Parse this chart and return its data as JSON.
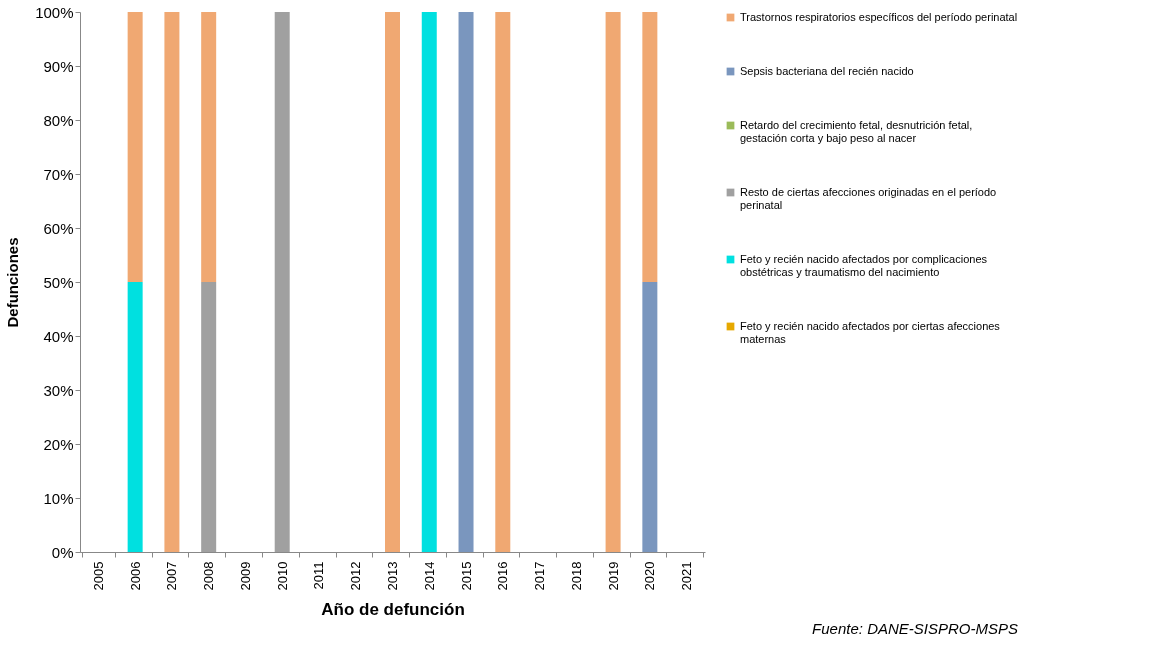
{
  "chart_data": {
    "type": "bar",
    "stacked": true,
    "xlabel": "Año de defunción",
    "ylabel": "Defunciones",
    "categories": [
      "2005",
      "2006",
      "2007",
      "2008",
      "2009",
      "2010",
      "2011",
      "2012",
      "2013",
      "2014",
      "2015",
      "2016",
      "2017",
      "2018",
      "2019",
      "2020",
      "2021"
    ],
    "series": [
      {
        "name": "Feto y recién nacido afectados por ciertas afecciones maternas",
        "color": "#e6a800",
        "values": [
          0,
          0,
          0,
          0,
          0,
          0,
          0,
          0,
          0,
          0,
          0,
          0,
          0,
          0,
          0,
          0,
          0
        ]
      },
      {
        "name": "Feto y recién nacido afectados por complicaciones obstétricas y traumatismo del nacimiento",
        "color": "#00e0e0",
        "values": [
          0,
          50,
          0,
          0,
          0,
          0,
          0,
          0,
          0,
          100,
          0,
          0,
          0,
          0,
          0,
          0,
          0
        ]
      },
      {
        "name": "Resto de ciertas afecciones originadas en el período perinatal",
        "color": "#a0a0a0",
        "values": [
          0,
          0,
          0,
          50,
          0,
          100,
          0,
          0,
          0,
          0,
          0,
          0,
          0,
          0,
          0,
          0,
          0
        ]
      },
      {
        "name": "Retardo del crecimiento fetal, desnutrición fetal, gestación corta y bajo peso al nacer",
        "color": "#9bbb59",
        "values": [
          0,
          0,
          0,
          0,
          0,
          0,
          0,
          0,
          0,
          0,
          0,
          0,
          0,
          0,
          0,
          0,
          0
        ]
      },
      {
        "name": "Sepsis bacteriana del recién nacido",
        "color": "#7a96be",
        "values": [
          0,
          0,
          0,
          0,
          0,
          0,
          0,
          0,
          0,
          0,
          100,
          0,
          0,
          0,
          0,
          50,
          0
        ]
      },
      {
        "name": "Trastornos respiratorios específicos del período perinatal",
        "color": "#f0a872",
        "values": [
          0,
          50,
          100,
          50,
          0,
          0,
          0,
          0,
          100,
          0,
          0,
          100,
          0,
          0,
          100,
          50,
          0
        ]
      }
    ],
    "ylim": [
      0,
      100
    ],
    "yticks": [
      {
        "value": 0,
        "label": "0%"
      },
      {
        "value": 10,
        "label": "10%"
      },
      {
        "value": 20,
        "label": "20%"
      },
      {
        "value": 30,
        "label": "30%"
      },
      {
        "value": 40,
        "label": "40%"
      },
      {
        "value": 50,
        "label": "50%"
      },
      {
        "value": 60,
        "label": "60%"
      },
      {
        "value": 70,
        "label": "70%"
      },
      {
        "value": 80,
        "label": "80%"
      },
      {
        "value": 90,
        "label": "90%"
      },
      {
        "value": 100,
        "label": "100%"
      }
    ],
    "grid": false,
    "legend": "right",
    "annotations": [
      "Fuente: DANE-SISPRO-MSPS"
    ]
  }
}
